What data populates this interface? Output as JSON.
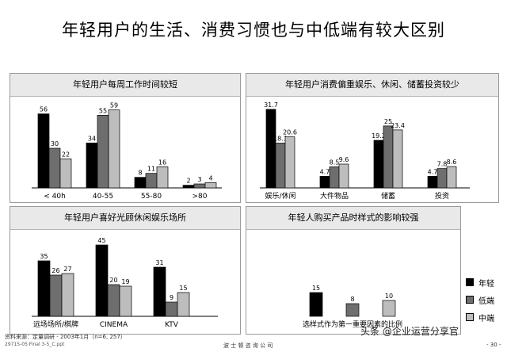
{
  "title": "年轻用户的生活、消费习惯也与中低端有较大区别",
  "legend": [
    {
      "name": "年轻",
      "color": "#000000"
    },
    {
      "name": "低端",
      "color": "#6e6e6e"
    },
    {
      "name": "中端",
      "color": "#bdbdbd"
    }
  ],
  "chart_data": [
    {
      "type": "bar",
      "title": "年轻用户每周工作时间较短",
      "categories": [
        "< 40h",
        "40-55",
        "55-80",
        ">80"
      ],
      "series": [
        {
          "name": "年轻",
          "values": [
            56,
            34,
            8,
            2
          ]
        },
        {
          "name": "低端",
          "values": [
            30,
            55,
            11,
            3
          ]
        },
        {
          "name": "中端",
          "values": [
            22,
            59,
            16,
            4
          ]
        }
      ],
      "labels": [
        [
          "56",
          "30",
          "22"
        ],
        [
          "34",
          "55",
          "59"
        ],
        [
          "8",
          "11",
          "16"
        ],
        [
          "2",
          "3",
          "4"
        ]
      ]
    },
    {
      "type": "bar",
      "title": "年轻用户消费偏重娱乐、休闲、储蓄投资较少",
      "categories": [
        "娱乐/休闲",
        "大件物品",
        "储蓄",
        "投资"
      ],
      "series": [
        {
          "name": "年轻",
          "values": [
            31.7,
            4.7,
            19.2,
            4.7
          ]
        },
        {
          "name": "低端",
          "values": [
            18.1,
            8.5,
            25,
            7.8
          ]
        },
        {
          "name": "中端",
          "values": [
            20.6,
            9.6,
            23.4,
            8.6
          ]
        }
      ],
      "labels": [
        [
          "31.7",
          "18.1",
          "20.6"
        ],
        [
          "4.7",
          "8.5",
          "9.6"
        ],
        [
          "19.2",
          "25",
          "23.4"
        ],
        [
          "4.7",
          "7.8",
          "8.6"
        ]
      ]
    },
    {
      "type": "bar",
      "title": "年轻用户喜好光顾休闲娱乐场所",
      "categories": [
        "远场场所/棋牌",
        "CINEMA",
        "KTV"
      ],
      "series": [
        {
          "name": "年轻",
          "values": [
            35,
            45,
            31
          ]
        },
        {
          "name": "低端",
          "values": [
            26,
            20,
            9
          ]
        },
        {
          "name": "中端",
          "values": [
            27,
            19,
            15
          ]
        }
      ],
      "labels": [
        [
          "35",
          "26",
          "27"
        ],
        [
          "45",
          "20",
          "19"
        ],
        [
          "31",
          "9",
          "15"
        ]
      ]
    },
    {
      "type": "bar",
      "title": "年轻人购买产品时样式的影响较强",
      "categories": [
        "选样式作为第一重要因素的比例"
      ],
      "series": [
        {
          "name": "年轻",
          "values": [
            15
          ]
        },
        {
          "name": "低端",
          "values": [
            8
          ]
        },
        {
          "name": "中端",
          "values": [
            10
          ]
        }
      ],
      "labels": [
        [
          "15",
          "8",
          "10"
        ]
      ]
    }
  ],
  "footer": {
    "source": "资料来源：定量调研  -  2003年1月（n=6, 257）",
    "file_id": "29715-05 Final 3-5_C.ppt",
    "company": "波 士 顿 咨 询 公 司",
    "page": "- 30 -",
    "watermark": "头条 @企业运营分享官"
  }
}
